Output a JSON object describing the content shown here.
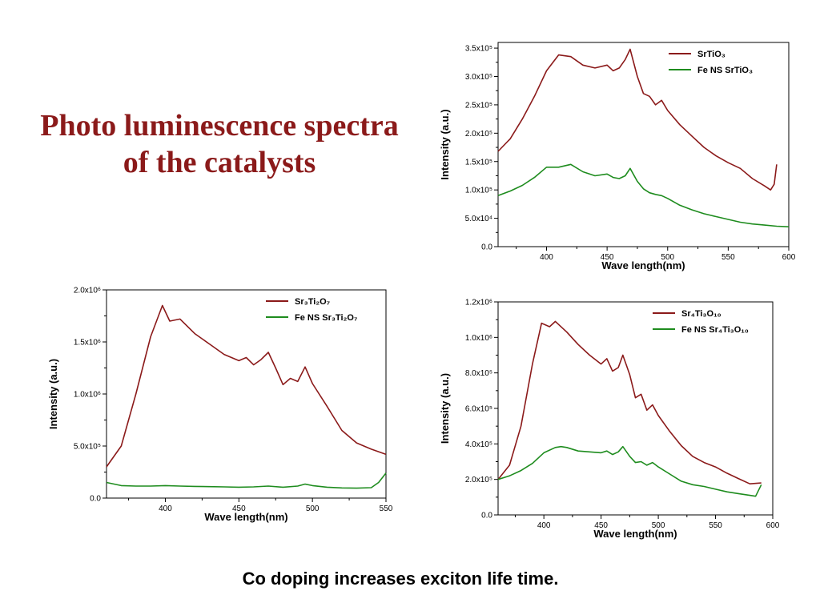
{
  "slide": {
    "title_line1": "Photo luminescence spectra",
    "title_line2": "of the catalysts",
    "caption": "Co doping increases exciton life time."
  },
  "colors": {
    "series_a": "#8b1a1a",
    "series_b": "#1e8c1e",
    "title": "#8b1a1a"
  },
  "chart_data": [
    {
      "id": "srtio3",
      "type": "line",
      "xlabel": "Wave length(nm)",
      "ylabel": "Intensity (a.u.)",
      "xlim": [
        360,
        600
      ],
      "ylim": [
        0,
        360000
      ],
      "x_ticks": [
        400,
        450,
        500,
        550,
        600
      ],
      "y_ticks": [
        0,
        50000,
        100000,
        150000,
        200000,
        250000,
        300000,
        350000
      ],
      "y_tick_labels": [
        "0.0",
        "5.0x10⁴",
        "1.0x10⁵",
        "1.5x10⁵",
        "2.0x10⁵",
        "2.5x10⁵",
        "3.0x10⁵",
        "3.5x10⁵"
      ],
      "legend_position": "top-right",
      "grid": false,
      "series": [
        {
          "name": "SrTiO₃",
          "x": [
            360,
            370,
            380,
            390,
            400,
            410,
            420,
            430,
            440,
            450,
            455,
            460,
            465,
            469,
            475,
            480,
            485,
            490,
            495,
            500,
            510,
            520,
            530,
            540,
            550,
            560,
            570,
            580,
            585,
            588,
            590
          ],
          "y": [
            168000,
            190000,
            225000,
            265000,
            310000,
            338000,
            335000,
            320000,
            315000,
            320000,
            310000,
            315000,
            330000,
            348000,
            300000,
            270000,
            265000,
            250000,
            258000,
            240000,
            215000,
            195000,
            175000,
            160000,
            148000,
            138000,
            120000,
            107000,
            100000,
            110000,
            145000
          ]
        },
        {
          "name": "Fe NS  SrTiO₃",
          "x": [
            360,
            370,
            380,
            390,
            400,
            410,
            420,
            430,
            440,
            450,
            455,
            460,
            465,
            469,
            475,
            480,
            485,
            490,
            495,
            500,
            510,
            520,
            530,
            540,
            550,
            560,
            570,
            580,
            590,
            600
          ],
          "y": [
            90000,
            98000,
            108000,
            122000,
            140000,
            140000,
            145000,
            132000,
            125000,
            128000,
            122000,
            120000,
            125000,
            138000,
            115000,
            102000,
            95000,
            92000,
            90000,
            85000,
            73000,
            65000,
            58000,
            53000,
            48000,
            43000,
            40000,
            38000,
            36000,
            35000
          ]
        }
      ]
    },
    {
      "id": "sr3ti2o7",
      "type": "line",
      "xlabel": "Wave length(nm)",
      "ylabel": "Intensity (a.u.)",
      "xlim": [
        360,
        550
      ],
      "ylim": [
        0,
        2000000
      ],
      "x_ticks": [
        400,
        450,
        500,
        550
      ],
      "y_ticks": [
        0,
        500000,
        1000000,
        1500000,
        2000000
      ],
      "y_tick_labels": [
        "0.0",
        "5.0x10⁵",
        "1.0x10⁶",
        "1.5x10⁶",
        "2.0x10⁶"
      ],
      "legend_position": "top-right",
      "grid": false,
      "series": [
        {
          "name": "Sr₃Ti₂O₇",
          "x": [
            360,
            370,
            380,
            390,
            398,
            403,
            410,
            420,
            430,
            440,
            450,
            455,
            460,
            465,
            470,
            475,
            480,
            485,
            490,
            495,
            500,
            510,
            520,
            530,
            540,
            550
          ],
          "y": [
            300000,
            500000,
            1000000,
            1550000,
            1850000,
            1700000,
            1720000,
            1580000,
            1480000,
            1380000,
            1320000,
            1350000,
            1280000,
            1330000,
            1400000,
            1250000,
            1090000,
            1150000,
            1120000,
            1260000,
            1100000,
            880000,
            650000,
            530000,
            470000,
            420000
          ]
        },
        {
          "name": "Fe NS  Sr₃Ti₂O₇",
          "x": [
            360,
            370,
            380,
            390,
            400,
            410,
            420,
            430,
            440,
            450,
            460,
            470,
            480,
            490,
            495,
            500,
            510,
            520,
            530,
            540,
            545,
            550
          ],
          "y": [
            150000,
            120000,
            115000,
            115000,
            120000,
            115000,
            112000,
            110000,
            108000,
            105000,
            108000,
            115000,
            105000,
            115000,
            135000,
            120000,
            105000,
            98000,
            95000,
            100000,
            150000,
            240000
          ]
        }
      ]
    },
    {
      "id": "sr4ti3o10",
      "type": "line",
      "xlabel": "Wave length(nm)",
      "ylabel": "Intensity (a.u.)",
      "xlim": [
        360,
        600
      ],
      "ylim": [
        0,
        1200000
      ],
      "x_ticks": [
        400,
        450,
        500,
        550,
        600
      ],
      "y_ticks": [
        0,
        200000,
        400000,
        600000,
        800000,
        1000000,
        1200000
      ],
      "y_tick_labels": [
        "0.0",
        "2.0x10⁵",
        "4.0x10⁵",
        "6.0x10⁵",
        "8.0x10⁵",
        "1.0x10⁶",
        "1.2x10⁶"
      ],
      "legend_position": "top-right",
      "grid": false,
      "series": [
        {
          "name": "Sr₄Ti₃O₁₀",
          "x": [
            360,
            370,
            380,
            390,
            398,
            405,
            410,
            420,
            430,
            440,
            450,
            455,
            460,
            465,
            469,
            475,
            480,
            485,
            490,
            495,
            500,
            510,
            520,
            530,
            540,
            550,
            560,
            570,
            580,
            590
          ],
          "y": [
            200000,
            280000,
            500000,
            850000,
            1080000,
            1060000,
            1090000,
            1030000,
            960000,
            900000,
            850000,
            880000,
            810000,
            830000,
            900000,
            790000,
            660000,
            680000,
            590000,
            620000,
            560000,
            470000,
            390000,
            330000,
            295000,
            270000,
            235000,
            205000,
            175000,
            180000
          ]
        },
        {
          "name": "Fe NS Sr₄Ti₃O₁₀",
          "x": [
            360,
            370,
            380,
            390,
            400,
            410,
            415,
            420,
            430,
            440,
            450,
            455,
            460,
            465,
            469,
            475,
            480,
            485,
            490,
            495,
            500,
            510,
            520,
            530,
            540,
            550,
            560,
            570,
            580,
            585,
            590
          ],
          "y": [
            200000,
            220000,
            250000,
            290000,
            350000,
            380000,
            385000,
            380000,
            360000,
            355000,
            350000,
            360000,
            340000,
            355000,
            385000,
            330000,
            295000,
            300000,
            280000,
            295000,
            270000,
            230000,
            190000,
            170000,
            160000,
            145000,
            130000,
            120000,
            110000,
            105000,
            170000
          ]
        }
      ]
    }
  ]
}
